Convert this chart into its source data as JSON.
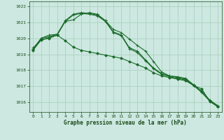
{
  "title": "Graphe pression niveau de la mer (hPa)",
  "bg_color": "#cce8e0",
  "grid_color": "#aaccbb",
  "line_color": "#1a6b2a",
  "text_color": "#1a4a1a",
  "xlim": [
    -0.5,
    23.5
  ],
  "ylim": [
    1015.4,
    1022.3
  ],
  "yticks": [
    1016,
    1017,
    1018,
    1019,
    1020,
    1021,
    1022
  ],
  "xticks": [
    0,
    1,
    2,
    3,
    4,
    5,
    6,
    7,
    8,
    9,
    10,
    11,
    12,
    13,
    14,
    15,
    16,
    17,
    18,
    19,
    20,
    21,
    22,
    23
  ],
  "series": [
    {
      "x": [
        0,
        1,
        2,
        3,
        4,
        5,
        6,
        7,
        8,
        9,
        10,
        11,
        12,
        13,
        14,
        15,
        16,
        17,
        18,
        19,
        20,
        21,
        22,
        23
      ],
      "y": [
        1019.25,
        1019.9,
        1020.0,
        1020.2,
        1019.85,
        1019.45,
        1019.25,
        1019.15,
        1019.05,
        1018.95,
        1018.85,
        1018.75,
        1018.55,
        1018.35,
        1018.15,
        1017.85,
        1017.65,
        1017.55,
        1017.45,
        1017.35,
        1017.05,
        1016.85,
        1016.05,
        1015.75
      ],
      "marker": "D",
      "markersize": 1.8,
      "linewidth": 0.8
    },
    {
      "x": [
        0,
        1,
        2,
        3,
        4,
        5,
        6,
        7,
        8,
        9,
        10,
        11,
        12,
        13,
        14,
        15,
        16,
        17,
        18,
        19,
        20,
        21,
        22,
        23
      ],
      "y": [
        1019.3,
        1020.0,
        1020.1,
        1020.25,
        1021.1,
        1021.5,
        1021.6,
        1021.55,
        1021.45,
        1021.1,
        1020.4,
        1020.2,
        1019.4,
        1019.2,
        1018.65,
        1018.15,
        1017.8,
        1017.65,
        1017.55,
        1017.45,
        1017.05,
        1016.65,
        1016.1,
        1015.75
      ],
      "marker": "+",
      "markersize": 3.5,
      "linewidth": 0.8
    },
    {
      "x": [
        0,
        1,
        2,
        3,
        4,
        5,
        6,
        7,
        8,
        9,
        10,
        11,
        12,
        13,
        14,
        15,
        16,
        17,
        18,
        19,
        20,
        21,
        22,
        23
      ],
      "y": [
        1019.35,
        1020.0,
        1020.2,
        1020.25,
        1021.05,
        1021.45,
        1021.55,
        1021.5,
        1021.4,
        1021.05,
        1020.35,
        1020.15,
        1019.35,
        1019.1,
        1018.6,
        1018.1,
        1017.75,
        1017.6,
        1017.5,
        1017.4,
        1017.05,
        1016.62,
        1016.08,
        1015.72
      ],
      "marker": "+",
      "markersize": 3.5,
      "linewidth": 0.8
    },
    {
      "x": [
        0,
        1,
        2,
        3,
        4,
        5,
        6,
        7,
        8,
        9,
        10,
        11,
        12,
        13,
        14,
        15,
        16,
        17,
        18,
        19,
        20,
        21,
        22,
        23
      ],
      "y": [
        1019.4,
        1019.9,
        1020.05,
        1020.2,
        1021.05,
        1021.15,
        1021.5,
        1021.6,
        1021.5,
        1021.1,
        1020.55,
        1020.35,
        1019.95,
        1019.55,
        1019.2,
        1018.55,
        1017.9,
        1017.65,
        1017.6,
        1017.5,
        1017.1,
        1016.7,
        1016.15,
        1015.8
      ],
      "marker": "+",
      "markersize": 3.5,
      "linewidth": 0.8
    }
  ]
}
